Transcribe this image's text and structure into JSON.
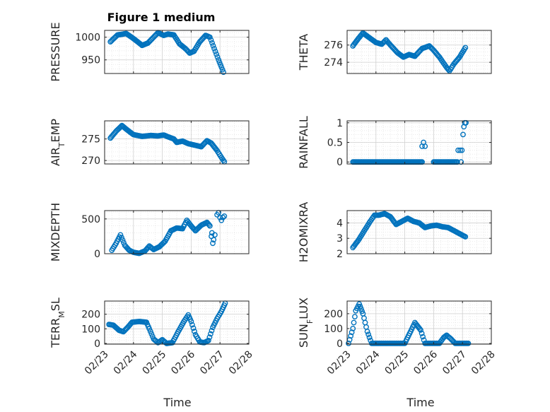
{
  "figure": {
    "title": "Figure 1 medium",
    "xlabel": "Time",
    "colors": {
      "marker": "#0072BD",
      "axis": "#262626",
      "grid": "#d0d0d0",
      "minor_grid": "#e2e2e2",
      "background": "#ffffff"
    }
  },
  "chart_data": [
    {
      "type": "scatter",
      "ylabel": "PRESSURE",
      "ylabel_parts": [
        {
          "t": "PRESSURE"
        }
      ],
      "ylim": [
        920,
        1015
      ],
      "yticks": [
        950,
        1000
      ],
      "ytick_labels": [
        "950",
        "1000"
      ],
      "xlim": [
        0,
        5
      ],
      "xticks": [
        0,
        1,
        2,
        3,
        4,
        5
      ],
      "xtick_labels": [
        "02/23",
        "02/24",
        "02/25",
        "02/26",
        "02/27",
        "02/28"
      ],
      "show_xtick_labels": false,
      "grid": true,
      "minor_grid": true,
      "curve": [
        [
          0.2,
          990
        ],
        [
          0.45,
          1005
        ],
        [
          0.75,
          1008
        ],
        [
          1.0,
          997
        ],
        [
          1.3,
          982
        ],
        [
          1.5,
          987
        ],
        [
          1.85,
          1010
        ],
        [
          2.05,
          1004
        ],
        [
          2.2,
          1007
        ],
        [
          2.4,
          1005
        ],
        [
          2.6,
          985
        ],
        [
          2.8,
          975
        ],
        [
          2.95,
          965
        ],
        [
          3.1,
          969
        ],
        [
          3.3,
          990
        ],
        [
          3.5,
          1004
        ],
        [
          3.65,
          1000
        ],
        [
          3.8,
          975
        ],
        [
          3.95,
          950
        ],
        [
          4.12,
          923
        ]
      ],
      "points": []
    },
    {
      "type": "scatter",
      "ylabel": "THETA",
      "ylabel_parts": [
        {
          "t": "THETA"
        }
      ],
      "ylim": [
        272.7,
        277.7
      ],
      "yticks": [
        274,
        276
      ],
      "ytick_labels": [
        "274",
        "276"
      ],
      "xlim": [
        0,
        5
      ],
      "xticks": [
        0,
        1,
        2,
        3,
        4,
        5
      ],
      "xtick_labels": [
        "02/23",
        "02/24",
        "02/25",
        "02/26",
        "02/27",
        "02/28"
      ],
      "show_xtick_labels": false,
      "grid": true,
      "minor_grid": true,
      "curve": [
        [
          0.2,
          275.9
        ],
        [
          0.4,
          276.8
        ],
        [
          0.55,
          277.4
        ],
        [
          0.75,
          276.9
        ],
        [
          1.0,
          276.3
        ],
        [
          1.2,
          276.1
        ],
        [
          1.35,
          276.6
        ],
        [
          1.5,
          276.0
        ],
        [
          1.75,
          275.1
        ],
        [
          1.95,
          274.6
        ],
        [
          2.15,
          274.9
        ],
        [
          2.35,
          274.7
        ],
        [
          2.6,
          275.6
        ],
        [
          2.85,
          275.9
        ],
        [
          3.0,
          275.4
        ],
        [
          3.2,
          274.6
        ],
        [
          3.45,
          273.4
        ],
        [
          3.55,
          273.0
        ],
        [
          3.7,
          273.8
        ],
        [
          3.9,
          274.6
        ],
        [
          4.1,
          275.7
        ]
      ],
      "points": []
    },
    {
      "type": "scatter",
      "ylabel": "AIR_TEMP",
      "ylabel_parts": [
        {
          "t": "AIR"
        },
        {
          "t": "T",
          "sub": true
        },
        {
          "t": "EMP"
        }
      ],
      "ylim": [
        269.2,
        279.2
      ],
      "yticks": [
        270,
        275
      ],
      "ytick_labels": [
        "270",
        "275"
      ],
      "xlim": [
        0,
        5
      ],
      "xticks": [
        0,
        1,
        2,
        3,
        4,
        5
      ],
      "xtick_labels": [
        "02/23",
        "02/24",
        "02/25",
        "02/26",
        "02/27",
        "02/28"
      ],
      "show_xtick_labels": false,
      "grid": true,
      "minor_grid": true,
      "curve": [
        [
          0.2,
          275.2
        ],
        [
          0.4,
          276.8
        ],
        [
          0.6,
          278.1
        ],
        [
          0.8,
          277.0
        ],
        [
          1.0,
          276.0
        ],
        [
          1.3,
          275.6
        ],
        [
          1.6,
          275.8
        ],
        [
          1.85,
          275.7
        ],
        [
          2.05,
          275.9
        ],
        [
          2.2,
          275.5
        ],
        [
          2.4,
          275.0
        ],
        [
          2.5,
          274.2
        ],
        [
          2.7,
          274.5
        ],
        [
          2.9,
          273.9
        ],
        [
          3.1,
          273.6
        ],
        [
          3.35,
          273.2
        ],
        [
          3.45,
          273.9
        ],
        [
          3.55,
          274.6
        ],
        [
          3.7,
          274.0
        ],
        [
          3.9,
          272.3
        ],
        [
          4.05,
          270.7
        ],
        [
          4.15,
          269.7
        ]
      ],
      "points": []
    },
    {
      "type": "scatter",
      "ylabel": "RAINFALL",
      "ylabel_parts": [
        {
          "t": "RAINFALL"
        }
      ],
      "ylim": [
        -0.05,
        1.05
      ],
      "yticks": [
        0,
        0.5,
        1
      ],
      "ytick_labels": [
        "0",
        "0.5",
        "1"
      ],
      "xlim": [
        0,
        5
      ],
      "xticks": [
        0,
        1,
        2,
        3,
        4,
        5
      ],
      "xtick_labels": [
        "02/23",
        "02/24",
        "02/25",
        "02/26",
        "02/27",
        "02/28"
      ],
      "show_xtick_labels": false,
      "grid": true,
      "minor_grid": true,
      "curve": [
        [
          0.2,
          0
        ],
        [
          2.6,
          0
        ]
      ],
      "curve2": [
        [
          3.0,
          0
        ],
        [
          3.82,
          0
        ]
      ],
      "points": [
        [
          2.6,
          0.4
        ],
        [
          2.65,
          0.5
        ],
        [
          2.7,
          0.4
        ],
        [
          3.85,
          0.3
        ],
        [
          3.92,
          0.3
        ],
        [
          3.98,
          0.3
        ],
        [
          4.02,
          0.7
        ],
        [
          4.05,
          0.9
        ],
        [
          4.08,
          1.0
        ],
        [
          4.12,
          1.0
        ],
        [
          3.95,
          0.0
        ]
      ]
    },
    {
      "type": "scatter",
      "ylabel": "MIXDEPTH",
      "ylabel_parts": [
        {
          "t": "MIXDEPTH"
        }
      ],
      "ylim": [
        0,
        620
      ],
      "yticks": [
        0,
        500
      ],
      "ytick_labels": [
        "0",
        "500"
      ],
      "xlim": [
        0,
        5
      ],
      "xticks": [
        0,
        1,
        2,
        3,
        4,
        5
      ],
      "xtick_labels": [
        "02/23",
        "02/24",
        "02/25",
        "02/26",
        "02/27",
        "02/28"
      ],
      "show_xtick_labels": false,
      "grid": true,
      "minor_grid": true,
      "curve": [
        [
          0.25,
          50
        ],
        [
          0.4,
          150
        ],
        [
          0.55,
          270
        ],
        [
          0.7,
          120
        ],
        [
          0.85,
          50
        ],
        [
          1.0,
          20
        ],
        [
          1.2,
          5
        ],
        [
          1.4,
          40
        ],
        [
          1.55,
          110
        ],
        [
          1.7,
          60
        ],
        [
          1.9,
          100
        ],
        [
          2.1,
          180
        ],
        [
          2.3,
          330
        ],
        [
          2.5,
          370
        ],
        [
          2.7,
          360
        ],
        [
          2.85,
          480
        ],
        [
          3.0,
          400
        ],
        [
          3.15,
          330
        ],
        [
          3.35,
          410
        ],
        [
          3.55,
          450
        ],
        [
          3.65,
          400
        ]
      ],
      "points": [
        [
          3.7,
          250
        ],
        [
          3.72,
          300
        ],
        [
          3.75,
          150
        ],
        [
          3.78,
          200
        ],
        [
          3.82,
          270
        ],
        [
          3.9,
          560
        ],
        [
          3.95,
          590
        ],
        [
          4.0,
          520
        ],
        [
          4.05,
          480
        ],
        [
          4.1,
          520
        ],
        [
          4.15,
          540
        ]
      ]
    },
    {
      "type": "scatter",
      "ylabel": "H2OMIXRA",
      "ylabel_parts": [
        {
          "t": "H2OMIXRA"
        }
      ],
      "ylim": [
        2,
        4.8
      ],
      "yticks": [
        2,
        3,
        4
      ],
      "ytick_labels": [
        "2",
        "3",
        "4"
      ],
      "xlim": [
        0,
        5
      ],
      "xticks": [
        0,
        1,
        2,
        3,
        4,
        5
      ],
      "xtick_labels": [
        "02/23",
        "02/24",
        "02/25",
        "02/26",
        "02/27",
        "02/28"
      ],
      "show_xtick_labels": false,
      "grid": true,
      "minor_grid": true,
      "curve": [
        [
          0.2,
          2.4
        ],
        [
          0.4,
          2.9
        ],
        [
          0.6,
          3.5
        ],
        [
          0.8,
          4.1
        ],
        [
          0.95,
          4.5
        ],
        [
          1.1,
          4.5
        ],
        [
          1.3,
          4.6
        ],
        [
          1.5,
          4.4
        ],
        [
          1.7,
          3.9
        ],
        [
          1.9,
          4.1
        ],
        [
          2.1,
          4.3
        ],
        [
          2.3,
          4.1
        ],
        [
          2.5,
          4.0
        ],
        [
          2.7,
          3.7
        ],
        [
          2.9,
          3.8
        ],
        [
          3.1,
          3.85
        ],
        [
          3.3,
          3.75
        ],
        [
          3.5,
          3.7
        ],
        [
          3.7,
          3.5
        ],
        [
          3.9,
          3.3
        ],
        [
          4.1,
          3.1
        ]
      ],
      "points": []
    },
    {
      "type": "scatter",
      "ylabel": "TERR_MSL",
      "ylabel_parts": [
        {
          "t": "TERR"
        },
        {
          "t": "M",
          "sub": true
        },
        {
          "t": "SL"
        }
      ],
      "ylim": [
        -5,
        290
      ],
      "yticks": [
        0,
        100,
        200
      ],
      "ytick_labels": [
        "0",
        "100",
        "200"
      ],
      "xlim": [
        0,
        5
      ],
      "xticks": [
        0,
        1,
        2,
        3,
        4,
        5
      ],
      "xtick_labels": [
        "02/23",
        "02/24",
        "02/25",
        "02/26",
        "02/27",
        "02/28"
      ],
      "show_xtick_labels": true,
      "grid": true,
      "minor_grid": true,
      "curve": [
        [
          0.15,
          130
        ],
        [
          0.3,
          125
        ],
        [
          0.5,
          90
        ],
        [
          0.65,
          80
        ],
        [
          0.8,
          110
        ],
        [
          0.95,
          145
        ],
        [
          1.2,
          150
        ],
        [
          1.45,
          145
        ],
        [
          1.55,
          100
        ],
        [
          1.7,
          30
        ],
        [
          1.85,
          5
        ],
        [
          2.0,
          25
        ],
        [
          2.15,
          0
        ],
        [
          2.35,
          5
        ],
        [
          2.55,
          80
        ],
        [
          2.75,
          150
        ],
        [
          2.9,
          195
        ],
        [
          3.0,
          150
        ],
        [
          3.15,
          60
        ],
        [
          3.3,
          10
        ],
        [
          3.45,
          5
        ],
        [
          3.6,
          20
        ],
        [
          3.75,
          110
        ],
        [
          3.9,
          170
        ],
        [
          4.05,
          220
        ],
        [
          4.18,
          275
        ]
      ],
      "points": []
    },
    {
      "type": "scatter",
      "ylabel": "SUN_FLUX",
      "ylabel_parts": [
        {
          "t": "SUN"
        },
        {
          "t": "F",
          "sub": true
        },
        {
          "t": "LUX"
        }
      ],
      "ylim": [
        -5,
        285
      ],
      "yticks": [
        0,
        100,
        200
      ],
      "ytick_labels": [
        "0",
        "100",
        "200"
      ],
      "xlim": [
        0,
        5
      ],
      "xticks": [
        0,
        1,
        2,
        3,
        4,
        5
      ],
      "xtick_labels": [
        "02/23",
        "02/24",
        "02/25",
        "02/26",
        "02/27",
        "02/28"
      ],
      "show_xtick_labels": true,
      "grid": true,
      "minor_grid": true,
      "curve": [
        [
          0.05,
          0
        ],
        [
          0.2,
          100
        ],
        [
          0.3,
          220
        ],
        [
          0.42,
          265
        ],
        [
          0.55,
          200
        ],
        [
          0.7,
          80
        ],
        [
          0.85,
          0
        ],
        [
          2.0,
          0
        ],
        [
          2.2,
          80
        ],
        [
          2.35,
          140
        ],
        [
          2.55,
          90
        ],
        [
          2.7,
          0
        ],
        [
          3.2,
          0
        ],
        [
          3.35,
          40
        ],
        [
          3.45,
          55
        ],
        [
          3.6,
          30
        ],
        [
          3.75,
          0
        ],
        [
          4.2,
          0
        ]
      ],
      "points": []
    }
  ]
}
